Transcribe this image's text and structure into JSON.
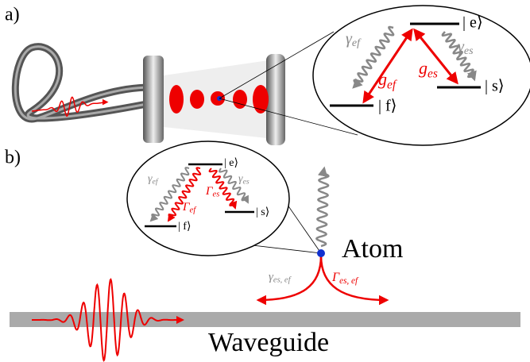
{
  "panel_a": {
    "label": "a)",
    "levels": {
      "e": "| e⟩",
      "f": "| f⟩",
      "s": "| s⟩"
    },
    "gamma_ef": {
      "symbol": "γ",
      "sub": "ef"
    },
    "gamma_es": {
      "symbol": "γ",
      "sub": "es"
    },
    "g_ef": {
      "symbol": "g",
      "sub": "ef"
    },
    "g_es": {
      "symbol": "g",
      "sub": "es"
    }
  },
  "panel_b": {
    "label": "b)",
    "levels": {
      "e": "| e⟩",
      "f": "| f⟩",
      "s": "| s⟩"
    },
    "gamma_ef": {
      "symbol": "γ",
      "sub": "ef"
    },
    "gamma_es": {
      "symbol": "γ",
      "sub": "es"
    },
    "Gamma_ef": {
      "symbol": "Γ",
      "sub": "ef"
    },
    "Gamma_es": {
      "symbol": "Γ",
      "sub": "es"
    },
    "atom": "Atom",
    "gamma_total": {
      "symbol": "γ",
      "sub": "es, ef"
    },
    "Gamma_total": {
      "symbol": "Γ",
      "sub": "es, ef"
    },
    "waveguide": "Waveguide"
  }
}
